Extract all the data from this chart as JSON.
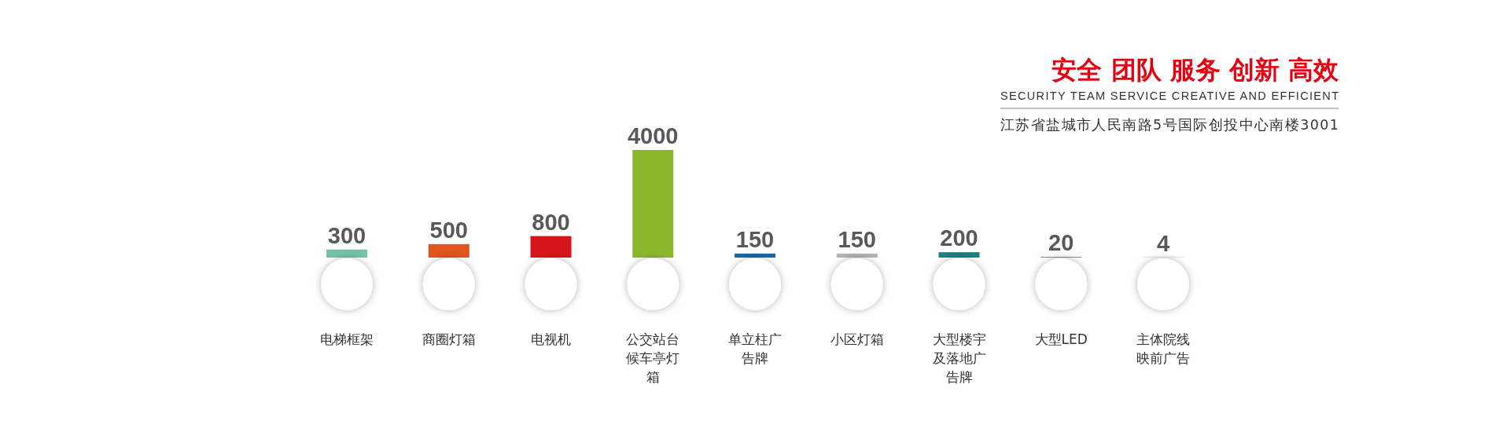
{
  "chart_data": {
    "type": "bar",
    "title": "安全 团队 服务 创新 高效",
    "subtitle": "SECURITY TEAM SERVICE CREATIVE AND EFFICIENT",
    "annotations": [
      "江苏省盐城市人民南路5号国际创投中心南楼3001"
    ],
    "categories": [
      "电梯框架",
      "商圈灯箱",
      "电视机",
      "公交站台候车亭灯箱",
      "单立柱广告牌",
      "小区灯箱",
      "大型楼宇及落地广告牌",
      "大型LED",
      "主体院线映前广告"
    ],
    "values": [
      300,
      500,
      800,
      4000,
      150,
      150,
      200,
      20,
      4
    ],
    "colors": [
      "#72c3a3",
      "#e0541e",
      "#d7161b",
      "#8ab82b",
      "#1469ab",
      "#b3b3b3",
      "#1a8280",
      "#c8154c",
      "#5a1f73"
    ],
    "data_labels": true
  }
}
